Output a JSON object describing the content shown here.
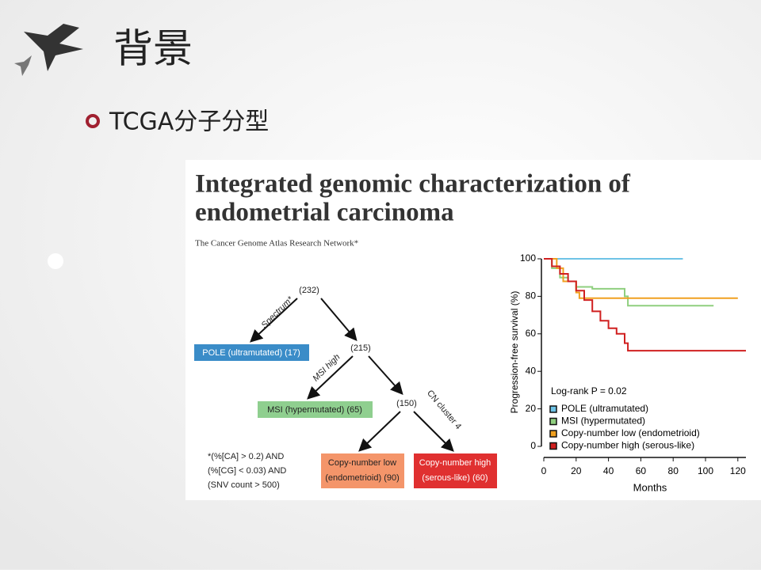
{
  "slide": {
    "title": "背景",
    "bullet": "TCGA分子分型"
  },
  "figure": {
    "heading": [
      "Integrated genomic characterization of",
      "endometrial carcinoma"
    ],
    "authors": "The Cancer Genome Atlas Research Network*",
    "tree": {
      "nodes": [
        "(232)",
        "(215)",
        "(150)"
      ],
      "edges": [
        "Spectrum*",
        "MSI high",
        "CN cluster 4"
      ],
      "boxes": [
        "POLE (ultramutated) (17)",
        "MSI (hypermutated) (65)",
        [
          "Copy-number low",
          "(endometrioid) (90)"
        ],
        [
          "Copy-number high",
          "(serous-like) (60)"
        ]
      ],
      "footnote": [
        "*(%[CA] > 0.2) AND",
        "(%[CG] < 0.03) AND",
        "(SNV count > 500)"
      ]
    }
  },
  "chart_data": {
    "type": "line",
    "ylabel": "Progression-free survival (%)",
    "xlabel": "Months",
    "annotation": "Log-rank P = 0.02",
    "xlim": [
      0,
      125
    ],
    "ylim": [
      0,
      100
    ],
    "xticks": [
      0,
      20,
      40,
      60,
      80,
      100,
      120
    ],
    "yticks": [
      0,
      20,
      40,
      60,
      80,
      100
    ],
    "step": true,
    "series": [
      {
        "name": "POLE (ultramutated)",
        "color": "#6ec3e6",
        "x": [
          0,
          86
        ],
        "values": [
          100,
          100
        ]
      },
      {
        "name": "MSI (hypermutated)",
        "color": "#8fcf7f",
        "x": [
          0,
          5,
          10,
          15,
          20,
          30,
          50,
          52,
          105
        ],
        "values": [
          100,
          95,
          90,
          88,
          85,
          84,
          80,
          75,
          75
        ]
      },
      {
        "name": "Copy-number low (endometrioid)",
        "color": "#f0a020",
        "x": [
          0,
          8,
          12,
          20,
          22,
          120
        ],
        "values": [
          100,
          95,
          88,
          82,
          79,
          79
        ]
      },
      {
        "name": "Copy-number high (serous-like)",
        "color": "#d02020",
        "x": [
          0,
          5,
          10,
          15,
          20,
          25,
          30,
          35,
          40,
          45,
          50,
          52,
          125
        ],
        "values": [
          100,
          96,
          92,
          88,
          83,
          78,
          72,
          67,
          63,
          60,
          55,
          51,
          51
        ]
      }
    ]
  }
}
